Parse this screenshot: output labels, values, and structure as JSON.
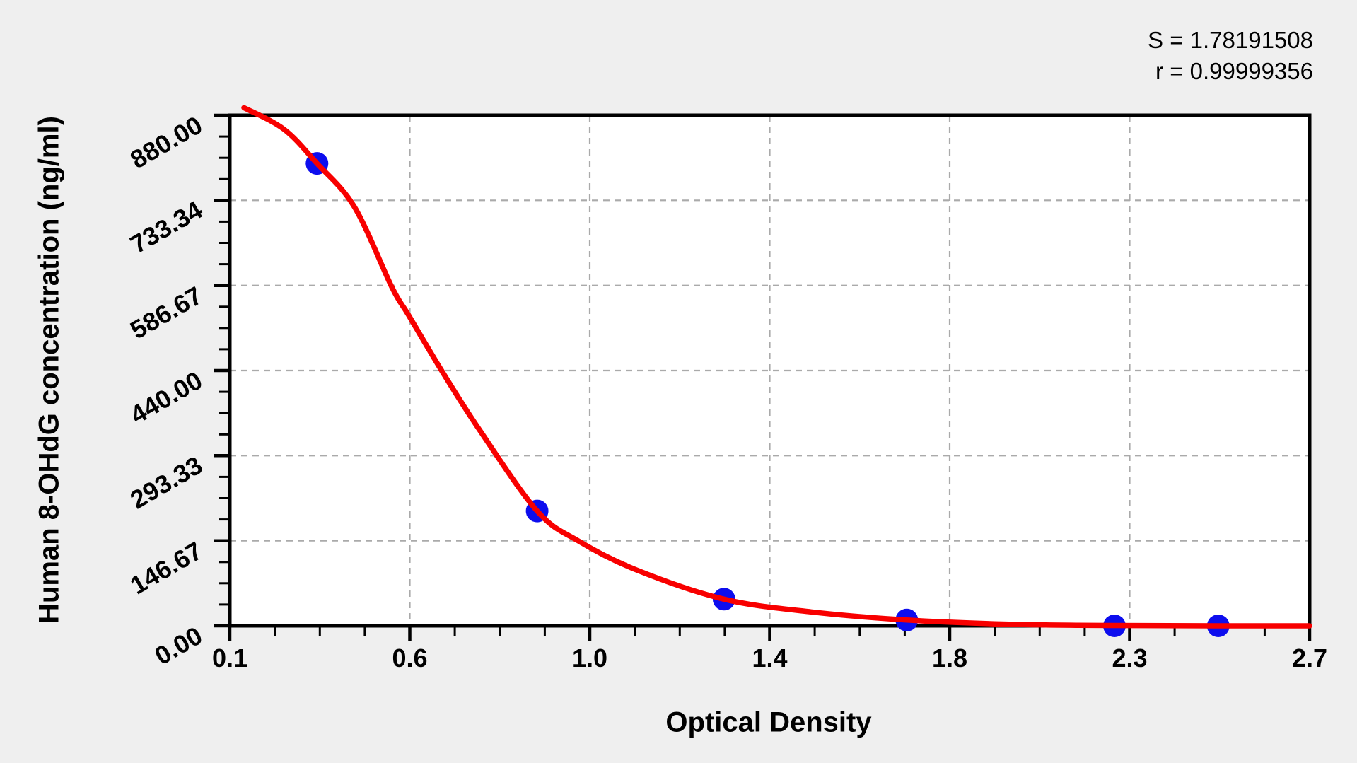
{
  "page": {
    "background": "#efefef"
  },
  "chart_data": {
    "type": "scatter",
    "title": "",
    "xlabel": "Optical Density",
    "ylabel": "Human 8-OHdG concentration (ng/ml)",
    "xlim": [
      0.1,
      2.7
    ],
    "ylim": [
      0,
      880
    ],
    "x_tick_labels": [
      "0.1",
      "0.6",
      "1.0",
      "1.4",
      "1.8",
      "2.3",
      "2.7"
    ],
    "y_tick_labels": [
      "880.00",
      "733.34",
      "586.67",
      "440.00",
      "293.33",
      "146.67",
      "0.00"
    ],
    "minor_ticks_per_interval": 3,
    "grid": "dashed light-gray lines at every major tick, both axes",
    "legend_position": "none",
    "annotations": [
      "S = 1.78191508",
      "r = 0.99999356"
    ],
    "series": [
      {
        "name": "standard-points",
        "type": "scatter",
        "marker": "filled-circle",
        "color": "#0d0dee",
        "points": [
          {
            "od": 0.31,
            "conc": 797
          },
          {
            "od": 0.84,
            "conc": 198
          },
          {
            "od": 1.29,
            "conc": 46
          },
          {
            "od": 1.73,
            "conc": 10
          },
          {
            "od": 2.23,
            "conc": 0
          },
          {
            "od": 2.48,
            "conc": 0
          }
        ]
      },
      {
        "name": "fit-curve",
        "type": "line",
        "color": "#f80000",
        "points": [
          [
            0.134,
            893
          ],
          [
            0.23,
            856
          ],
          [
            0.31,
            797
          ],
          [
            0.4,
            722
          ],
          [
            0.49,
            584
          ],
          [
            0.53,
            536
          ],
          [
            0.61,
            440
          ],
          [
            0.7,
            339
          ],
          [
            0.84,
            198
          ],
          [
            0.94,
            146
          ],
          [
            1.08,
            96
          ],
          [
            1.29,
            46
          ],
          [
            1.5,
            24
          ],
          [
            1.73,
            10
          ],
          [
            1.96,
            3
          ],
          [
            2.14,
            1
          ],
          [
            2.3,
            0.5
          ],
          [
            2.48,
            0
          ],
          [
            2.7,
            0
          ]
        ]
      }
    ],
    "colors": {
      "background": "#efefef",
      "plot_background": "#ffffff",
      "axis": "#000000",
      "gridline": "#aaaaaa",
      "curve": "#f80000",
      "point": "#0d0dee"
    }
  }
}
